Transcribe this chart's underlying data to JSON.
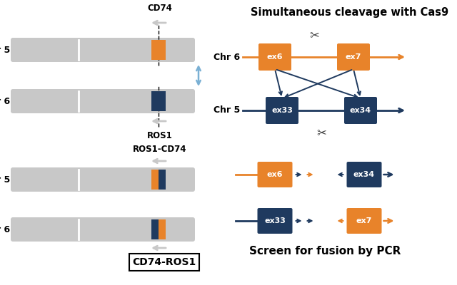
{
  "bg_color": "#ffffff",
  "gray_color": "#c8c8c8",
  "orange_color": "#e8832a",
  "dark_blue_color": "#1f3a5f",
  "arrow_blue": "#7ab0d4",
  "chr_label_fontsize": 9,
  "annotation_fontsize": 8.5,
  "title_fontsize": 10.5,
  "right_panel_title": "Simultaneous cleavage with Cas9",
  "screen_label": "Screen for fusion by PCR",
  "cd74_label": "CD74",
  "ros1_label": "ROS1",
  "ros1cd74_label": "ROS1-CD74",
  "cd74ros1_label": "CD74-ROS1"
}
